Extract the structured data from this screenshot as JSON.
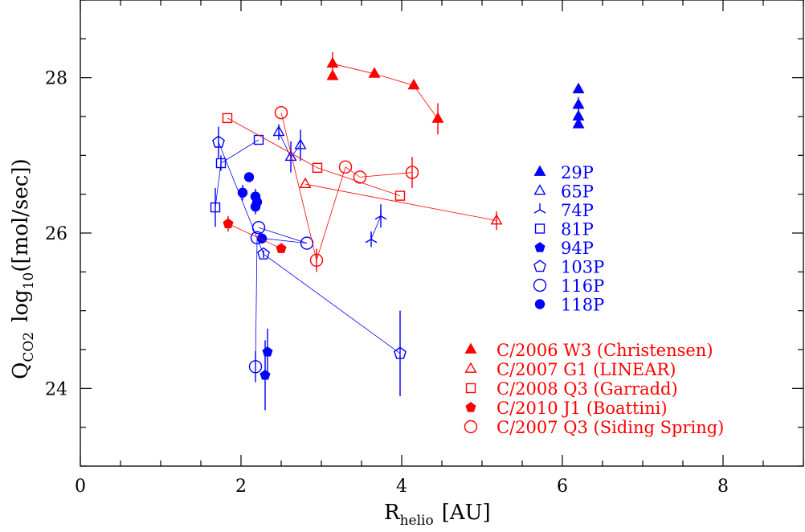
{
  "chart_data": {
    "type": "scatter",
    "title": "",
    "xlabel": {
      "main": "R",
      "sub": "helio",
      "unit": "[AU]"
    },
    "ylabel": {
      "main": "Q",
      "sub": "CO2",
      "mid": "log",
      "mid_sub": "10",
      "unit": "([mol/sec])"
    },
    "xlim": [
      0,
      9
    ],
    "ylim": [
      23,
      29
    ],
    "x_ticks": [
      0,
      2,
      4,
      6,
      8
    ],
    "y_ticks": [
      24,
      26,
      28
    ],
    "x_tick_labels": [
      "0",
      "2",
      "4",
      "6",
      "8"
    ],
    "y_tick_labels": [
      "24",
      "26",
      "28"
    ],
    "colors": {
      "periodic": "#0000ff",
      "long_period": "#ff0000"
    },
    "series": [
      {
        "name": "29P",
        "color": "#0000ff",
        "marker": "triangle",
        "filled": true,
        "connected": false,
        "points": [
          [
            6.2,
            27.85,
            0.05
          ],
          [
            6.2,
            27.65,
            0.1
          ],
          [
            6.2,
            27.5,
            0.1
          ],
          [
            6.2,
            27.4,
            0.05
          ]
        ]
      },
      {
        "name": "65P",
        "color": "#0000ff",
        "marker": "triangle",
        "filled": false,
        "connected": true,
        "points": [
          [
            2.47,
            27.3,
            0.1
          ],
          [
            2.62,
            26.98,
            0.2
          ],
          [
            2.74,
            27.13,
            0.2
          ]
        ]
      },
      {
        "name": "74P",
        "color": "#0000ff",
        "marker": "tripod",
        "filled": false,
        "connected": true,
        "points": [
          [
            3.62,
            25.92,
            0.1
          ],
          [
            3.74,
            26.22,
            0.15
          ]
        ]
      },
      {
        "name": "81P",
        "color": "#0000ff",
        "marker": "square",
        "filled": false,
        "connected": true,
        "points": [
          [
            2.22,
            27.2,
            0
          ],
          [
            1.75,
            26.9,
            0.1
          ],
          [
            1.68,
            26.33,
            0.25
          ]
        ]
      },
      {
        "name": "94P",
        "color": "#0000ff",
        "marker": "pentagon",
        "filled": true,
        "connected": false,
        "points": [
          [
            2.33,
            24.47,
            0.3
          ],
          [
            2.3,
            24.17,
            0.45
          ]
        ]
      },
      {
        "name": "103P",
        "color": "#0000ff",
        "marker": "pentagon",
        "filled": false,
        "connected": true,
        "points": [
          [
            1.72,
            27.17,
            0.2
          ],
          [
            2.28,
            25.73,
            0.05
          ],
          [
            3.98,
            24.45,
            0.55
          ]
        ]
      },
      {
        "name": "116P",
        "color": "#0000ff",
        "marker": "circle",
        "filled": false,
        "connected": true,
        "points": [
          [
            2.22,
            26.07,
            0
          ],
          [
            2.82,
            25.87,
            0
          ],
          [
            2.2,
            25.94,
            0
          ],
          [
            2.18,
            24.28,
            0.2
          ]
        ]
      },
      {
        "name": "118P",
        "color": "#0000ff",
        "marker": "circle",
        "filled": true,
        "connected": false,
        "points": [
          [
            2.1,
            26.72,
            0
          ],
          [
            2.02,
            26.52,
            0.1
          ],
          [
            2.18,
            26.47,
            0.1
          ],
          [
            2.2,
            26.4,
            0.1
          ],
          [
            2.18,
            26.34,
            0.1
          ],
          [
            2.26,
            25.93,
            0
          ]
        ]
      },
      {
        "name": "C/2006 W3 (Christensen)",
        "color": "#ff0000",
        "marker": "triangle",
        "filled": true,
        "connected": true,
        "points": [
          [
            3.14,
            28.18,
            0.15
          ],
          [
            3.66,
            28.05,
            0
          ],
          [
            4.15,
            27.9,
            0
          ],
          [
            4.45,
            27.47,
            0.2
          ]
        ]
      },
      {
        "name": "C/2006 W3 (Christensen) #2",
        "color": "#ff0000",
        "marker": "triangle",
        "filled": true,
        "connected": false,
        "points": [
          [
            3.14,
            28.02,
            0.05
          ]
        ]
      },
      {
        "name": "C/2007 G1 (LINEAR)",
        "color": "#ff0000",
        "marker": "triangle",
        "filled": false,
        "connected": true,
        "points": [
          [
            2.8,
            26.63,
            0
          ],
          [
            5.18,
            26.16,
            0.12
          ]
        ]
      },
      {
        "name": "C/2008 Q3 (Garradd)",
        "color": "#ff0000",
        "marker": "square",
        "filled": false,
        "connected": true,
        "points": [
          [
            1.83,
            27.48,
            0
          ],
          [
            2.95,
            26.84,
            0
          ],
          [
            3.98,
            26.48,
            0
          ]
        ]
      },
      {
        "name": "C/2010 J1 (Boattini)",
        "color": "#ff0000",
        "marker": "pentagon",
        "filled": true,
        "connected": true,
        "points": [
          [
            1.84,
            26.12,
            0.1
          ],
          [
            2.5,
            25.8,
            0.05
          ]
        ]
      },
      {
        "name": "C/2007 Q3 (Siding Spring)",
        "color": "#ff0000",
        "marker": "circle",
        "filled": false,
        "connected": true,
        "points": [
          [
            2.5,
            27.55,
            0
          ],
          [
            2.94,
            25.65,
            0.15
          ],
          [
            3.3,
            26.85,
            0
          ],
          [
            3.48,
            26.72,
            0
          ],
          [
            4.13,
            26.78,
            0.2
          ]
        ]
      }
    ],
    "legend_blue": [
      {
        "label": "29P",
        "marker": "triangle",
        "filled": true
      },
      {
        "label": "65P",
        "marker": "triangle",
        "filled": false
      },
      {
        "label": "74P",
        "marker": "tripod",
        "filled": false
      },
      {
        "label": "81P",
        "marker": "square",
        "filled": false
      },
      {
        "label": "94P",
        "marker": "pentagon",
        "filled": true
      },
      {
        "label": "103P",
        "marker": "pentagon",
        "filled": false
      },
      {
        "label": "116P",
        "marker": "circle",
        "filled": false
      },
      {
        "label": "118P",
        "marker": "circle",
        "filled": true
      }
    ],
    "legend_red": [
      {
        "label": "C/2006 W3 (Christensen)",
        "marker": "triangle",
        "filled": true
      },
      {
        "label": "C/2007 G1 (LINEAR)",
        "marker": "triangle",
        "filled": false
      },
      {
        "label": "C/2008 Q3 (Garradd)",
        "marker": "square",
        "filled": false
      },
      {
        "label": "C/2010 J1 (Boattini)",
        "marker": "pentagon",
        "filled": true
      },
      {
        "label": "C/2007 Q3 (Siding Spring)",
        "marker": "circle",
        "filled": false
      }
    ]
  }
}
